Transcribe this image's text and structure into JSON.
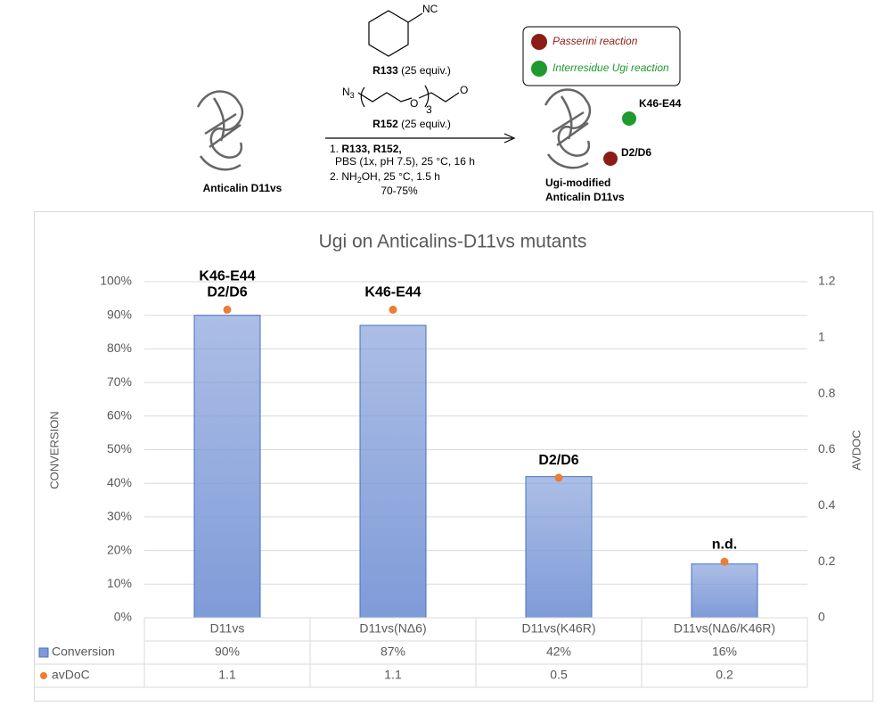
{
  "scheme": {
    "reagent_1": {
      "group": "NC",
      "code": "R133",
      "amount": "(25 equiv.)"
    },
    "reagent_2": {
      "azide": "N",
      "azide_sub": "3",
      "ether_o": "O",
      "repeat": "3",
      "aldehyde_o": "O",
      "code": "R152",
      "amount": "(25 equiv.)"
    },
    "conditions": {
      "step_1_num": "1.",
      "step_1_reagents": "R133, R152,",
      "step_1_details": "PBS (1x, pH 7.5), 25 °C, 16 h",
      "step_2_num": "2.",
      "step_2_a": "NH",
      "step_2_sub": "2",
      "step_2_b": "OH, 25 °C, 1.5 h",
      "yield": "70-75%"
    },
    "start_label": "Anticalin D11vs",
    "product_label": [
      "Ugi-modified",
      "Anticalin D11vs"
    ],
    "product_sites": [
      "K46-E44",
      "D2/D6"
    ],
    "legend": [
      {
        "label": "Passerini reaction",
        "color": "#8b1c16"
      },
      {
        "label": "Interresidue Ugi reaction",
        "color": "#1f9a2e"
      }
    ]
  },
  "chart_data": {
    "type": "bar",
    "title": "Ugi on Anticalins-D11vs mutants",
    "y_label": "CONVERSION",
    "y2_label": "AVDOC",
    "categories": [
      "D11vs",
      "D11vs(NΔ6)",
      "D11vs(K46R)",
      "D11vs(NΔ6/K46R)"
    ],
    "series": [
      {
        "name": "Conversion",
        "type": "bar",
        "color": "#7f9bd8",
        "edgecolor": "#4472c4",
        "values": [
          90,
          87,
          42,
          16
        ],
        "value_labels": [
          "90%",
          "87%",
          "42%",
          "16%"
        ]
      },
      {
        "name": "avDoC",
        "type": "scatter",
        "axis": "y2",
        "color": "#ed7d31",
        "values": [
          1.1,
          1.1,
          0.5,
          0.2
        ]
      }
    ],
    "annotations": [
      [
        "K46-E44",
        "D2/D6"
      ],
      [
        "K46-E44"
      ],
      [
        "D2/D6"
      ],
      [
        "n.d."
      ]
    ],
    "ylim": [
      0,
      100
    ],
    "yticks": [
      {
        "value": 0,
        "label": "0%"
      },
      {
        "value": 10,
        "label": "10%"
      },
      {
        "value": 20,
        "label": "20%"
      },
      {
        "value": 30,
        "label": "30%"
      },
      {
        "value": 40,
        "label": "40%"
      },
      {
        "value": 50,
        "label": "50%"
      },
      {
        "value": 60,
        "label": "60%"
      },
      {
        "value": 70,
        "label": "70%"
      },
      {
        "value": 80,
        "label": "80%"
      },
      {
        "value": 90,
        "label": "90%"
      },
      {
        "value": 100,
        "label": "100%"
      }
    ],
    "y2lim": [
      0,
      1.2
    ],
    "y2ticks": [
      0,
      0.2,
      0.4,
      0.6,
      0.8,
      1,
      1.2
    ],
    "grid": true,
    "data_table": true
  }
}
